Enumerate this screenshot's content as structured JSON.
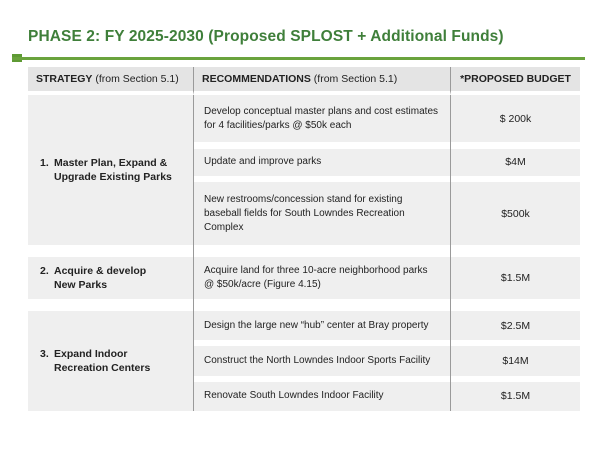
{
  "title": "PHASE 2: FY 2025-2030 (Proposed SPLOST + Additional Funds)",
  "colors": {
    "title": "#3f7f3a",
    "rule": "#6aa33d",
    "header_bg": "#e4e4e4",
    "cell_bg": "#efefef"
  },
  "headers": {
    "strategy_bold": "STRATEGY",
    "strategy_note": " (from Section 5.1)",
    "recommendations_bold": "RECOMMENDATIONS",
    "recommendations_note": " (from Section 5.1)",
    "budget": "*PROPOSED BUDGET"
  },
  "groups": [
    {
      "number": "1.",
      "line1": "Master Plan, Expand &",
      "line2": "Upgrade Existing Parks",
      "items": [
        {
          "recommendation": "Develop conceptual master plans and cost estimates for 4 facilities/parks @ $50k each",
          "budget": "$ 200k"
        },
        {
          "recommendation": "Update and improve parks",
          "budget": "$4M"
        },
        {
          "recommendation": "New restrooms/concession stand for existing baseball fields for South Lowndes Recreation Complex",
          "budget": "$500k"
        }
      ]
    },
    {
      "number": "2.",
      "line1": "Acquire & develop",
      "line2": "New Parks",
      "items": [
        {
          "recommendation": "Acquire land for three 10-acre neighborhood parks @ $50k/acre (Figure 4.15)",
          "budget": "$1.5M"
        }
      ]
    },
    {
      "number": "3.",
      "line1": "Expand Indoor",
      "line2": "Recreation Centers",
      "items": [
        {
          "recommendation": "Design the large new “hub” center at Bray property",
          "budget": "$2.5M"
        },
        {
          "recommendation": "Construct the North Lowndes Indoor Sports Facility",
          "budget": "$14M"
        },
        {
          "recommendation": "Renovate South Lowndes Indoor Facility",
          "budget": "$1.5M"
        }
      ]
    }
  ]
}
